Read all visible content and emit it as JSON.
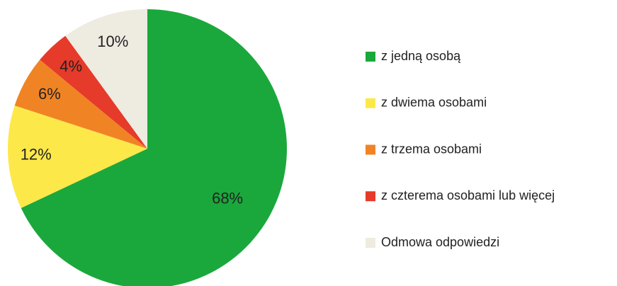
{
  "chart_data": {
    "type": "pie",
    "categories": [
      "z jedną osobą",
      "z dwiema osobami",
      "z trzema osobami",
      "z czterema osobami lub więcej",
      "Odmowa odpowiedzi"
    ],
    "values": [
      68,
      12,
      6,
      4,
      10
    ],
    "value_labels": [
      "68%",
      "12%",
      "6%",
      "4%",
      "10%"
    ],
    "colors": [
      "#1aa83c",
      "#fde84a",
      "#f08424",
      "#e63a2a",
      "#eeebe0"
    ],
    "legend": "right"
  }
}
